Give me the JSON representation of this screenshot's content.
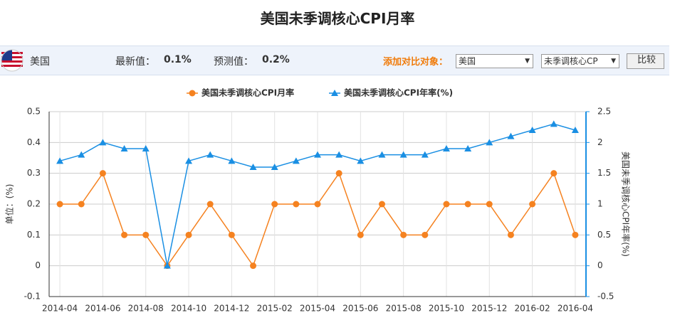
{
  "page_title": "美国未季调核心CPI月率",
  "toolbar": {
    "country": "美国",
    "latest_label": "最新值：",
    "latest_value": "0.1%",
    "forecast_label": "预测值：",
    "forecast_value": "0.2%",
    "compare_label": "添加对比对象：",
    "compare_country": "美国",
    "compare_indicator": "未季调核心CP",
    "compare_button": "比较"
  },
  "chart_data": {
    "type": "line",
    "categories": [
      "2014-04",
      null,
      "2014-06",
      null,
      "2014-08",
      null,
      "2014-10",
      null,
      "2014-12",
      null,
      "2015-02",
      null,
      "2015-04",
      null,
      "2015-06",
      null,
      "2015-08",
      null,
      "2015-10",
      null,
      "2015-12",
      null,
      "2016-02",
      null,
      "2016-04"
    ],
    "series": [
      {
        "name": "美国未季调核心CPI月率",
        "color": "#f58220",
        "marker": "circle",
        "values": [
          0.2,
          0.2,
          0.3,
          0.1,
          0.1,
          0,
          0.1,
          0.2,
          0.1,
          0,
          0.2,
          0.2,
          0.2,
          0.3,
          0.1,
          0.2,
          0.1,
          0.1,
          0.2,
          0.2,
          0.2,
          0.1,
          0.2,
          0.3,
          0.1
        ]
      },
      {
        "name": "美国未季调核心CPI年率(%)",
        "color": "#1a8fe3",
        "marker": "triangle",
        "axis": "y2",
        "values": [
          1.7,
          1.8,
          2.0,
          1.9,
          1.9,
          0,
          1.7,
          1.8,
          1.7,
          1.6,
          1.6,
          1.7,
          1.8,
          1.8,
          1.7,
          1.8,
          1.8,
          1.8,
          1.9,
          1.9,
          2.0,
          2.1,
          2.2,
          2.3,
          2.2
        ]
      }
    ],
    "ylabel": "单位：(%)",
    "y2label": "美国未季调核心CPI年率(%)",
    "ylim": [
      -0.1,
      0.5
    ],
    "yticks": [
      -0.1,
      0,
      0.1,
      0.2,
      0.3,
      0.4,
      0.5
    ],
    "y2lim": [
      -0.5,
      2.5
    ],
    "y2ticks": [
      -0.5,
      0,
      0.5,
      1,
      1.5,
      2,
      2.5
    ],
    "grid": true
  }
}
